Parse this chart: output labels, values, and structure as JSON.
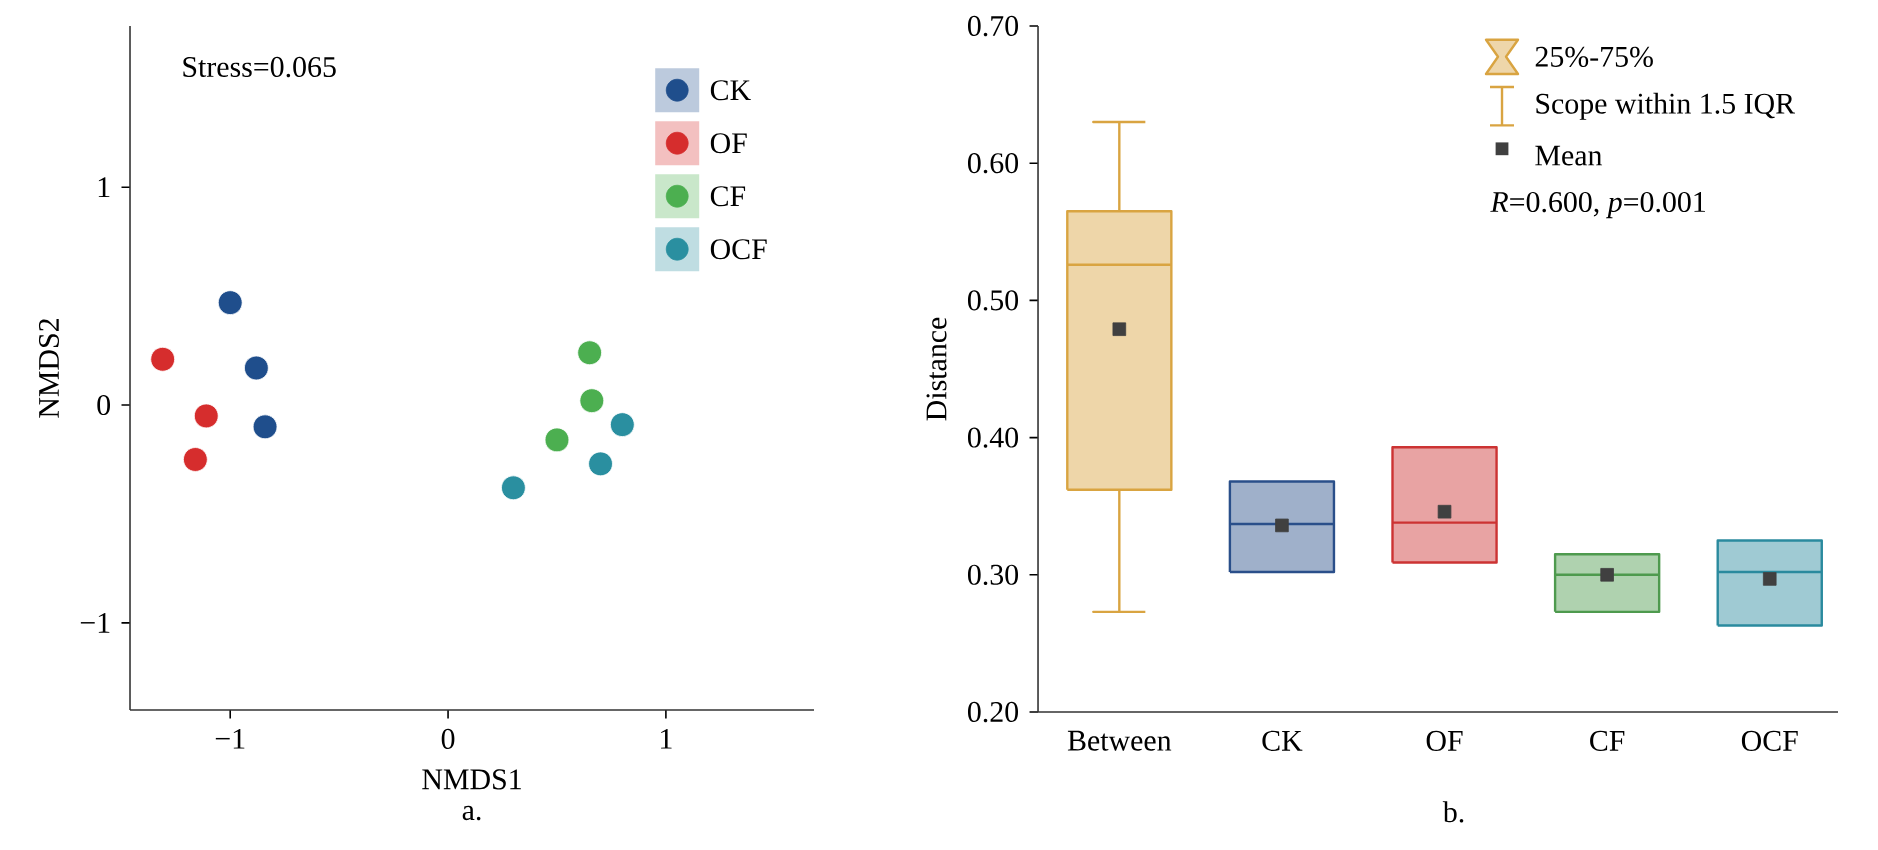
{
  "chart_data": [
    {
      "type": "scatter",
      "xlabel": "NMDS1",
      "ylabel": "NMDS2",
      "annotations": [
        "Stress=0.065",
        "a."
      ],
      "xlim": [
        -1.46,
        1.68
      ],
      "ylim": [
        -1.4,
        1.74
      ],
      "xticks": [
        {
          "value": -1,
          "label": "−1"
        },
        0,
        1
      ],
      "yticks": [
        {
          "value": -1,
          "label": "−1"
        },
        0,
        1
      ],
      "marker": "circle",
      "legend": "top right",
      "series": [
        {
          "name": "CK",
          "color": "#1f4e8c",
          "x": [
            -1.0,
            -0.88,
            -0.84
          ],
          "values": [
            0.47,
            0.17,
            -0.1
          ]
        },
        {
          "name": "OF",
          "color": "#d62d2d",
          "x": [
            -1.31,
            -1.11,
            -1.16
          ],
          "values": [
            0.21,
            -0.05,
            -0.25
          ]
        },
        {
          "name": "CF",
          "color": "#4caf50",
          "x": [
            0.65,
            0.66,
            0.5
          ],
          "values": [
            0.24,
            0.02,
            -0.16
          ]
        },
        {
          "name": "OCF",
          "color": "#2a8fa0",
          "x": [
            0.8,
            0.7,
            0.3
          ],
          "values": [
            -0.09,
            -0.27,
            -0.38
          ]
        }
      ]
    },
    {
      "type": "box",
      "ylabel": "Distance",
      "annotations": [
        "25%-75%",
        "Scope within 1.5 IQR",
        "Mean",
        "*R*=0.600, *p*=0.001",
        "b."
      ],
      "categories": [
        "Between",
        "CK",
        "OF",
        "CF",
        "OCF"
      ],
      "colors": [
        "#d9a441",
        "#2a4f8a",
        "#cc3333",
        "#4e9a4e",
        "#2a8a9e"
      ],
      "ylim": [
        0.2,
        0.7
      ],
      "yticks": [
        {
          "value": 0.2,
          "label": "0.20"
        },
        {
          "value": 0.3,
          "label": "0.30"
        },
        {
          "value": 0.4,
          "label": "0.40"
        },
        {
          "value": 0.5,
          "label": "0.50"
        },
        {
          "value": 0.6,
          "label": "0.60"
        },
        {
          "value": 0.7,
          "label": "0.70"
        }
      ],
      "boxes": [
        {
          "low": 0.273,
          "q1": 0.362,
          "median": 0.526,
          "q3": 0.565,
          "high": 0.63,
          "mean": 0.479
        },
        {
          "low": 0.302,
          "q1": 0.302,
          "median": 0.337,
          "q3": 0.368,
          "high": 0.368,
          "mean": 0.336
        },
        {
          "low": 0.309,
          "q1": 0.309,
          "median": 0.338,
          "q3": 0.393,
          "high": 0.393,
          "mean": 0.346
        },
        {
          "low": 0.273,
          "q1": 0.273,
          "median": 0.3,
          "q3": 0.315,
          "high": 0.315,
          "mean": 0.3
        },
        {
          "low": 0.263,
          "q1": 0.263,
          "median": 0.302,
          "q3": 0.325,
          "high": 0.325,
          "mean": 0.297
        }
      ]
    }
  ]
}
